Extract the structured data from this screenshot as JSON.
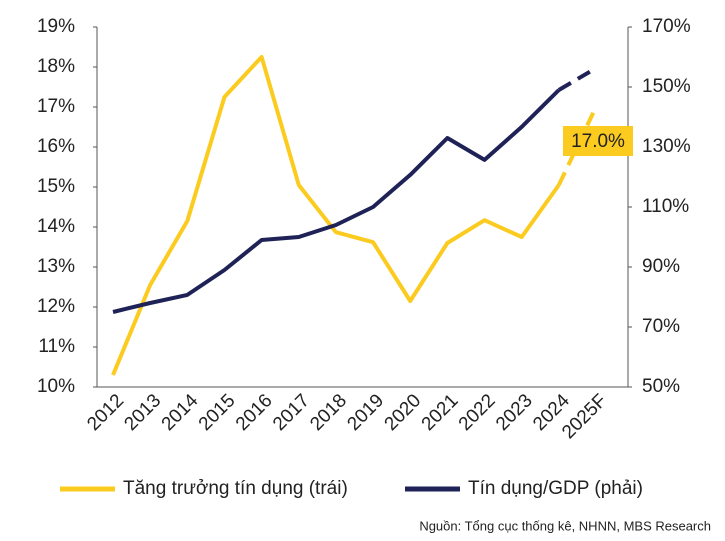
{
  "chart_data": {
    "type": "line",
    "categories": [
      "2012",
      "2013",
      "2014",
      "2015",
      "2016",
      "2017",
      "2018",
      "2019",
      "2020",
      "2021",
      "2022",
      "2023",
      "2024",
      "2025F"
    ],
    "series": [
      {
        "name": "Tăng trưởng tín dụng (trái)",
        "color": "#fccb1f",
        "axis": "y",
        "values": [
          10.3,
          12.55,
          14.15,
          17.25,
          18.25,
          15.05,
          13.87,
          13.62,
          12.15,
          13.6,
          14.17,
          13.75,
          15.05,
          17.0
        ],
        "value_labels": [
          null,
          null,
          null,
          null,
          null,
          null,
          null,
          null,
          null,
          null,
          null,
          null,
          null,
          "17.0%"
        ]
      },
      {
        "name": "Tín dụng/GDP (phải)",
        "color": "#1f2257",
        "axis": "y2",
        "values": [
          75,
          78,
          80.7,
          89,
          99,
          100,
          104,
          110,
          120.7,
          133,
          125.7,
          136.7,
          149,
          156.3
        ]
      }
    ],
    "ylim": [
      10,
      19
    ],
    "yticks": [
      {
        "value": 10,
        "label": "10%"
      },
      {
        "value": 11,
        "label": "11%"
      },
      {
        "value": 12,
        "label": "12%"
      },
      {
        "value": 13,
        "label": "13%"
      },
      {
        "value": 14,
        "label": "14%"
      },
      {
        "value": 15,
        "label": "15%"
      },
      {
        "value": 16,
        "label": "16%"
      },
      {
        "value": 17,
        "label": "17%"
      },
      {
        "value": 18,
        "label": "18%"
      },
      {
        "value": 19,
        "label": "19%"
      }
    ],
    "y2lim": [
      50,
      170
    ],
    "y2ticks": [
      {
        "value": 50,
        "label": "50%"
      },
      {
        "value": 70,
        "label": "70%"
      },
      {
        "value": 90,
        "label": "90%"
      },
      {
        "value": 110,
        "label": "110%"
      },
      {
        "value": 130,
        "label": "130%"
      },
      {
        "value": 150,
        "label": "150%"
      },
      {
        "value": 170,
        "label": "170%"
      }
    ],
    "grid": false,
    "source": "Nguồn: Tổng cục thống kê, NHNN, MBS Research"
  }
}
